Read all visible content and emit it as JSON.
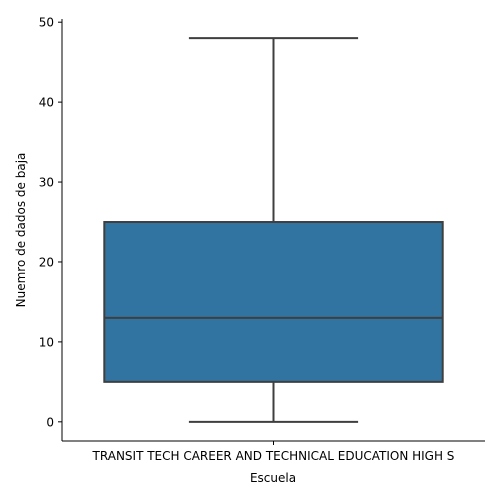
{
  "chart_data": {
    "type": "box",
    "xlabel": "Escuela",
    "ylabel": "Nuemro de dados de baja",
    "categories": [
      "TRANSIT TECH CAREER AND TECHNICAL EDUCATION HIGH S"
    ],
    "boxes": [
      {
        "category": "TRANSIT TECH CAREER AND TECHNICAL EDUCATION HIGH S",
        "whisker_low": 0,
        "q1": 5,
        "median": 13,
        "q3": 25,
        "whisker_high": 48
      }
    ],
    "ylim": [
      -2.4,
      50.4
    ],
    "yticks": [
      0,
      10,
      20,
      30,
      40,
      50
    ],
    "box_color": "#3274a1",
    "line_color": "#3f3f3f",
    "grid": false,
    "spines": "left-bottom"
  }
}
